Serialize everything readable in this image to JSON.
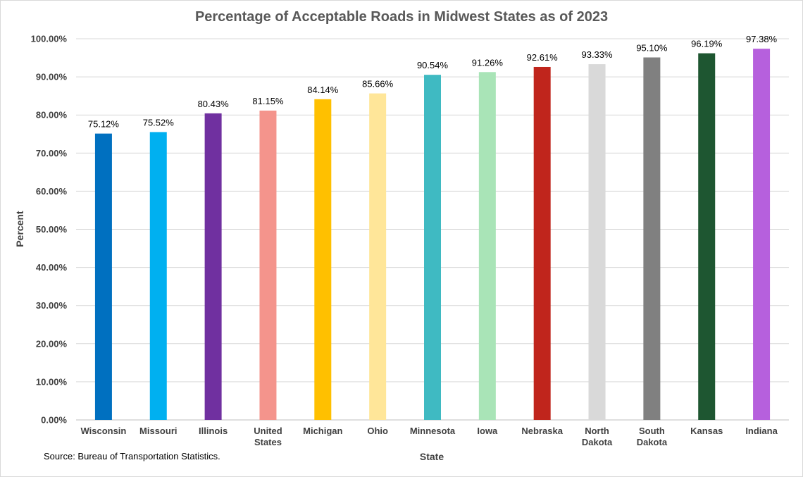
{
  "chart_data": {
    "type": "bar",
    "title": "Percentage of Acceptable Roads in Midwest States as of 2023",
    "xlabel": "State",
    "ylabel": "Percent",
    "ylim": [
      0,
      100
    ],
    "ytick_step": 10,
    "ytick_labels": [
      "0.00%",
      "10.00%",
      "20.00%",
      "30.00%",
      "40.00%",
      "50.00%",
      "60.00%",
      "70.00%",
      "80.00%",
      "90.00%",
      "100.00%"
    ],
    "grid": true,
    "categories": [
      [
        "Wisconsin"
      ],
      [
        "Missouri"
      ],
      [
        "Illinois"
      ],
      [
        "United",
        "States"
      ],
      [
        "Michigan"
      ],
      [
        "Ohio"
      ],
      [
        "Minnesota"
      ],
      [
        "Iowa"
      ],
      [
        "Nebraska"
      ],
      [
        "North",
        "Dakota"
      ],
      [
        "South",
        "Dakota"
      ],
      [
        "Kansas"
      ],
      [
        "Indiana"
      ]
    ],
    "values": [
      75.12,
      75.52,
      80.43,
      81.15,
      84.14,
      85.66,
      90.54,
      91.26,
      92.61,
      93.33,
      95.1,
      96.19,
      97.38
    ],
    "data_labels": [
      "75.12%",
      "75.52%",
      "80.43%",
      "81.15%",
      "84.14%",
      "85.66%",
      "90.54%",
      "91.26%",
      "92.61%",
      "93.33%",
      "95.10%",
      "96.19%",
      "97.38%"
    ],
    "colors": [
      "#0070c0",
      "#00b0f0",
      "#7030a0",
      "#f4948c",
      "#ffc000",
      "#ffe699",
      "#3fbac2",
      "#a9e4b7",
      "#c0251c",
      "#d9d9d9",
      "#808080",
      "#1e5631",
      "#b660dd"
    ],
    "source": "Source: Bureau of Transportation Statistics."
  }
}
